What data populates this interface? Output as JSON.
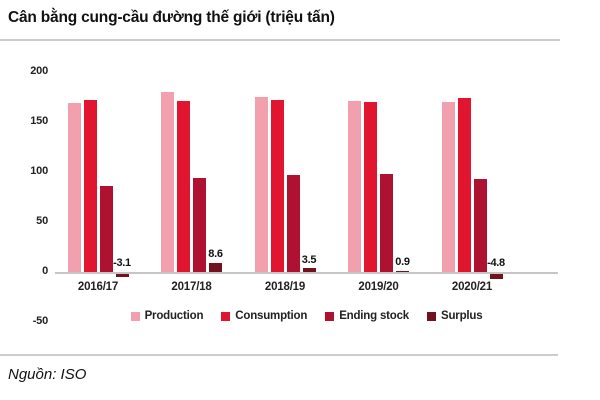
{
  "title": "Cân bằng cung-cầu đường thế giới (triệu tấn)",
  "source_note": "Nguồn: ISO",
  "colors": {
    "production": "#F3A0AE",
    "consumption": "#E11530",
    "ending_stock": "#AF1230",
    "surplus": "#73121F",
    "axis_line": "#C6C6C6",
    "divider": "#CCCCCC",
    "text": "#111111"
  },
  "chart_data": {
    "type": "bar",
    "title": "Cân bằng cung-cầu đường thế giới (triệu tấn)",
    "categories": [
      "2016/17",
      "2017/18",
      "2018/19",
      "2019/20",
      "2020/21"
    ],
    "series": [
      {
        "name": "Production",
        "color": "#F3A0AE",
        "values": [
          169.0,
          180.0,
          175.0,
          171.0,
          169.5
        ]
      },
      {
        "name": "Consumption",
        "color": "#E11530",
        "values": [
          172.1,
          171.4,
          171.5,
          170.1,
          174.3
        ]
      },
      {
        "name": "Ending stock",
        "color": "#AF1230",
        "values": [
          86,
          94,
          97,
          98,
          93
        ]
      },
      {
        "name": "Surplus",
        "color": "#73121F",
        "values": [
          -3.1,
          8.6,
          3.5,
          0.9,
          -4.8
        ],
        "data_labels": [
          "-3.1",
          "8.6",
          "3.5",
          "0.9",
          "-4.8"
        ]
      }
    ],
    "xlabel": "",
    "ylabel": "",
    "yticks": [
      200,
      150,
      100,
      50,
      0,
      -50
    ],
    "ylim": [
      -50,
      200
    ],
    "grid": false,
    "legend_position": "bottom"
  }
}
